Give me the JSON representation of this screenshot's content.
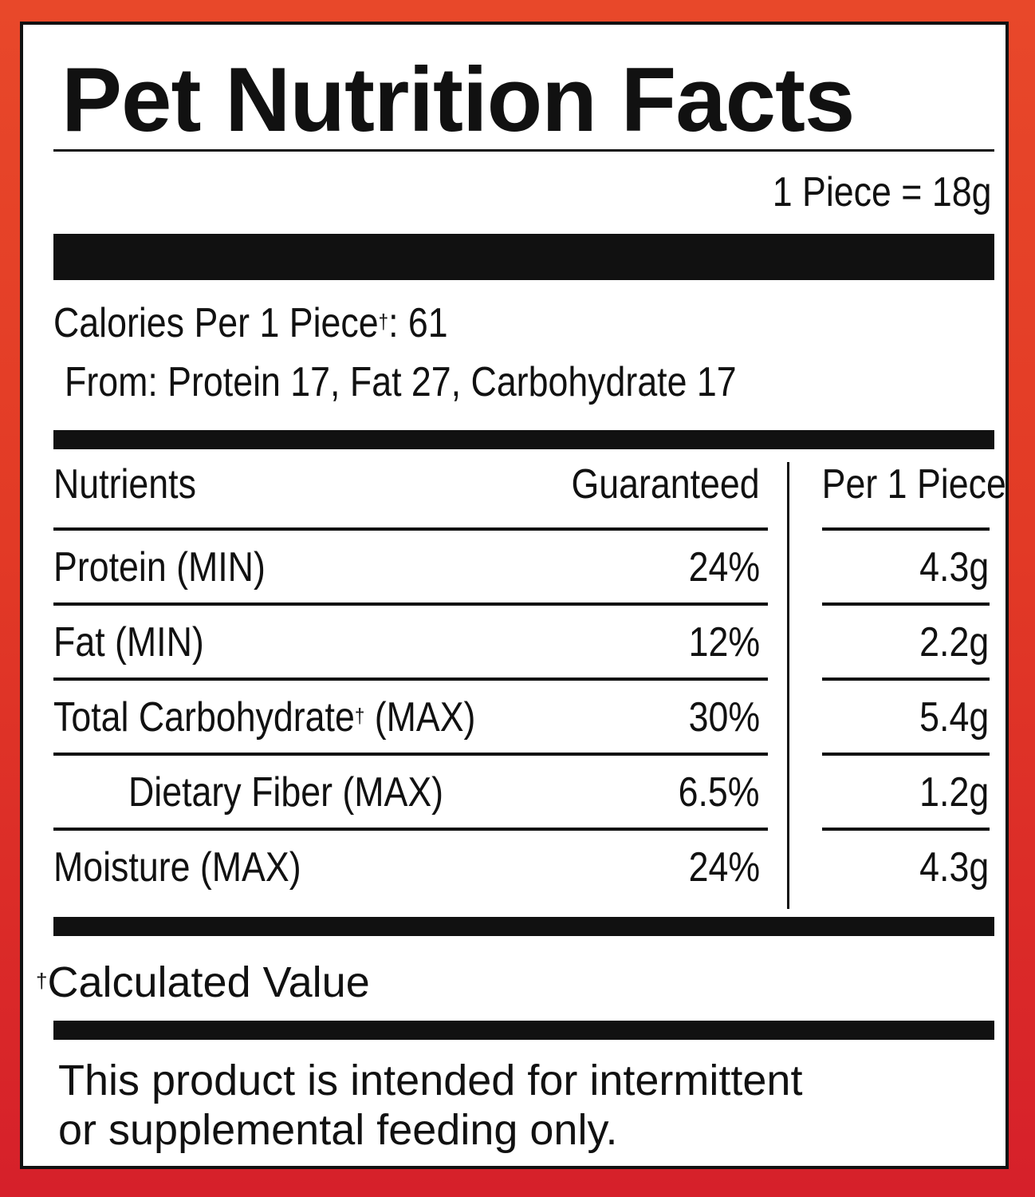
{
  "label": {
    "title": "Pet Nutrition Facts",
    "serving": "1 Piece = 18g",
    "calories_label": "Calories Per 1 Piece",
    "calories_dagger": "†",
    "calories_value": ": 61",
    "calories_from": "From: Protein 17, Fat 27, Carbohydrate 17",
    "table": {
      "headers": {
        "nutrients": "Nutrients",
        "guaranteed": "Guaranteed",
        "per_piece": "Per 1 Piece"
      },
      "rows": [
        {
          "name": "Protein (MIN)",
          "guaranteed": "24%",
          "per_piece": "4.3g"
        },
        {
          "name": "Fat (MIN)",
          "guaranteed": "12%",
          "per_piece": "2.2g"
        },
        {
          "name": "Total Carbohydrate",
          "dagger": "†",
          "suffix": " (MAX)",
          "guaranteed": "30%",
          "per_piece": "5.4g"
        },
        {
          "name": "Dietary Fiber (MAX)",
          "guaranteed": "6.5%",
          "per_piece": "1.2g"
        },
        {
          "name": "Moisture (MAX)",
          "guaranteed": "24%",
          "per_piece": "4.3g"
        }
      ]
    },
    "footnote_dagger": "†",
    "footnote": "Calculated Value",
    "disclaimer_line1": "This product is intended for intermittent",
    "disclaimer_line2": "or supplemental feeding only."
  },
  "colors": {
    "border_gradient_top": "#e8482a",
    "border_gradient_bottom": "#d6202a",
    "panel": "#ffffff",
    "ink": "#111111"
  }
}
